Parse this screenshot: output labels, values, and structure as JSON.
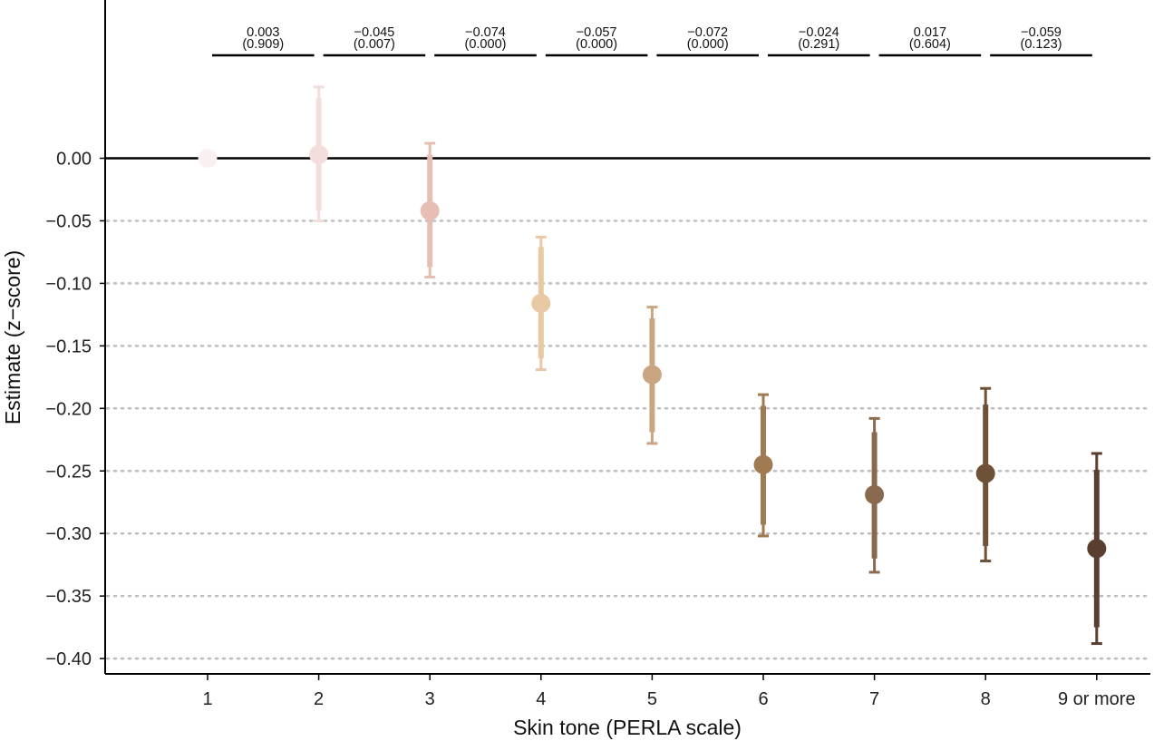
{
  "chart_data": {
    "type": "scatter",
    "xlabel": "Skin tone (PERLA scale)",
    "ylabel": "Estimate (z−score)",
    "ylim": [
      -0.412,
      0.125
    ],
    "yticks": [
      0.0,
      -0.05,
      -0.1,
      -0.15,
      -0.2,
      -0.25,
      -0.3,
      -0.35,
      -0.4
    ],
    "ytick_labels": [
      "0.00",
      "−0.05",
      "−0.10",
      "−0.15",
      "−0.20",
      "−0.25",
      "−0.30",
      "−0.35",
      "−0.40"
    ],
    "categories": [
      "1",
      "2",
      "3",
      "4",
      "5",
      "6",
      "7",
      "8",
      "9 or more"
    ],
    "points": [
      {
        "estimate": 0.0,
        "ci90": null,
        "ci95": null,
        "color": "#FBF0F0"
      },
      {
        "estimate": 0.003,
        "ci90": [
          -0.042,
          0.048
        ],
        "ci95": [
          -0.05,
          0.057
        ],
        "color": "#F3DEDC"
      },
      {
        "estimate": -0.042,
        "ci90": [
          -0.087,
          0.003
        ],
        "ci95": [
          -0.095,
          0.012
        ],
        "color": "#E6BEB3"
      },
      {
        "estimate": -0.116,
        "ci90": [
          -0.16,
          -0.071
        ],
        "ci95": [
          -0.169,
          -0.063
        ],
        "color": "#E9C9A3"
      },
      {
        "estimate": -0.173,
        "ci90": [
          -0.219,
          -0.128
        ],
        "ci95": [
          -0.228,
          -0.119
        ],
        "color": "#C9A582"
      },
      {
        "estimate": -0.245,
        "ci90": [
          -0.293,
          -0.198
        ],
        "ci95": [
          -0.302,
          -0.189
        ],
        "color": "#A07A50"
      },
      {
        "estimate": -0.269,
        "ci90": [
          -0.32,
          -0.219
        ],
        "ci95": [
          -0.331,
          -0.208
        ],
        "color": "#8A6A4F"
      },
      {
        "estimate": -0.252,
        "ci90": [
          -0.31,
          -0.197
        ],
        "ci95": [
          -0.322,
          -0.184
        ],
        "color": "#6E5137"
      },
      {
        "estimate": -0.312,
        "ci90": [
          -0.375,
          -0.249
        ],
        "ci95": [
          -0.388,
          -0.236
        ],
        "color": "#5A3F31"
      }
    ],
    "reference_line": 0.0,
    "grid": "horizontal-dotted",
    "brackets": [
      {
        "from": "1",
        "to": "2",
        "diff": "0.003",
        "p": "(0.909)"
      },
      {
        "from": "2",
        "to": "3",
        "diff": "−0.045",
        "p": "(0.007)"
      },
      {
        "from": "3",
        "to": "4",
        "diff": "−0.074",
        "p": "(0.000)"
      },
      {
        "from": "4",
        "to": "5",
        "diff": "−0.057",
        "p": "(0.000)"
      },
      {
        "from": "5",
        "to": "6",
        "diff": "−0.072",
        "p": "(0.000)"
      },
      {
        "from": "6",
        "to": "7",
        "diff": "−0.024",
        "p": "(0.291)"
      },
      {
        "from": "7",
        "to": "8",
        "diff": "0.017",
        "p": "(0.604)"
      },
      {
        "from": "8",
        "to": "9 or more",
        "diff": "−0.059",
        "p": "(0.123)"
      }
    ]
  }
}
